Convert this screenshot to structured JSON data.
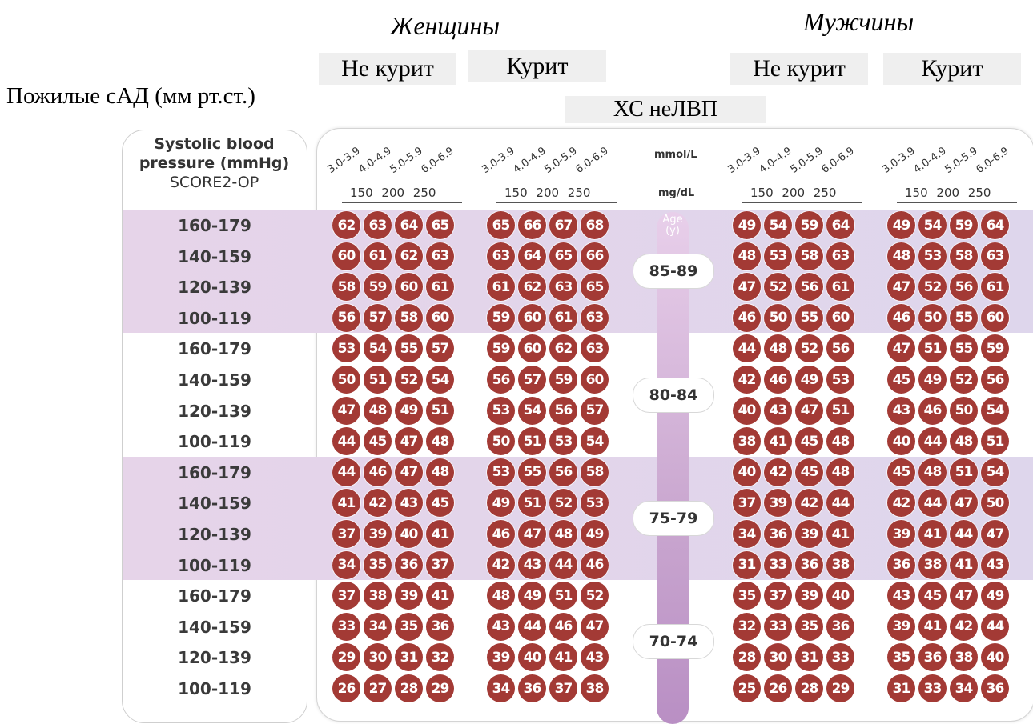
{
  "header": {
    "women": "Женщины",
    "men": "Мужчины",
    "nonsmoker": "Не курит",
    "smoker": "Курит",
    "cholesterol": "ХС неЛВП",
    "sbp_title": "Пожилые сАД (мм рт.ст.)"
  },
  "table": {
    "sbp_head_line1": "Systolic blood",
    "sbp_head_line2": "pressure (mmHg)",
    "sbp_head_line3": "SCORE2-OP",
    "chol_ranges": [
      "3.0-3.9",
      "4.0-4.9",
      "5.0-5.9",
      "6.0-6.9"
    ],
    "mg_ticks": "150 200 250",
    "unit_mmol": "mmol/L",
    "unit_mg": "mg/dL",
    "age_label": "Age (y)",
    "sbp_rows": [
      "160-179",
      "140-159",
      "120-139",
      "100-119"
    ],
    "age_groups": [
      {
        "age": "85-89",
        "shaded": true,
        "rows": [
          [
            [
              62,
              63,
              64,
              65
            ],
            [
              65,
              66,
              67,
              68
            ],
            [
              49,
              54,
              59,
              64
            ],
            [
              49,
              54,
              59,
              64
            ]
          ],
          [
            [
              60,
              61,
              62,
              63
            ],
            [
              63,
              64,
              65,
              66
            ],
            [
              48,
              53,
              58,
              63
            ],
            [
              48,
              53,
              58,
              63
            ]
          ],
          [
            [
              58,
              59,
              60,
              61
            ],
            [
              61,
              62,
              63,
              65
            ],
            [
              47,
              52,
              56,
              61
            ],
            [
              47,
              52,
              56,
              61
            ]
          ],
          [
            [
              56,
              57,
              58,
              60
            ],
            [
              59,
              60,
              61,
              63
            ],
            [
              46,
              50,
              55,
              60
            ],
            [
              46,
              50,
              55,
              60
            ]
          ]
        ]
      },
      {
        "age": "80-84",
        "shaded": false,
        "rows": [
          [
            [
              53,
              54,
              55,
              57
            ],
            [
              59,
              60,
              62,
              63
            ],
            [
              44,
              48,
              52,
              56
            ],
            [
              47,
              51,
              55,
              59
            ]
          ],
          [
            [
              50,
              51,
              52,
              54
            ],
            [
              56,
              57,
              59,
              60
            ],
            [
              42,
              46,
              49,
              53
            ],
            [
              45,
              49,
              52,
              56
            ]
          ],
          [
            [
              47,
              48,
              49,
              51
            ],
            [
              53,
              54,
              56,
              57
            ],
            [
              40,
              43,
              47,
              51
            ],
            [
              43,
              46,
              50,
              54
            ]
          ],
          [
            [
              44,
              45,
              47,
              48
            ],
            [
              50,
              51,
              53,
              54
            ],
            [
              38,
              41,
              45,
              48
            ],
            [
              40,
              44,
              48,
              51
            ]
          ]
        ]
      },
      {
        "age": "75-79",
        "shaded": true,
        "rows": [
          [
            [
              44,
              46,
              47,
              48
            ],
            [
              53,
              55,
              56,
              58
            ],
            [
              40,
              42,
              45,
              48
            ],
            [
              45,
              48,
              51,
              54
            ]
          ],
          [
            [
              41,
              42,
              43,
              45
            ],
            [
              49,
              51,
              52,
              53
            ],
            [
              37,
              39,
              42,
              44
            ],
            [
              42,
              44,
              47,
              50
            ]
          ],
          [
            [
              37,
              39,
              40,
              41
            ],
            [
              46,
              47,
              48,
              49
            ],
            [
              34,
              36,
              39,
              41
            ],
            [
              39,
              41,
              44,
              47
            ]
          ],
          [
            [
              34,
              35,
              36,
              37
            ],
            [
              42,
              43,
              44,
              46
            ],
            [
              31,
              33,
              36,
              38
            ],
            [
              36,
              38,
              41,
              43
            ]
          ]
        ]
      },
      {
        "age": "70-74",
        "shaded": false,
        "rows": [
          [
            [
              37,
              38,
              39,
              41
            ],
            [
              48,
              49,
              51,
              52
            ],
            [
              35,
              37,
              39,
              40
            ],
            [
              43,
              45,
              47,
              49
            ]
          ],
          [
            [
              33,
              34,
              35,
              36
            ],
            [
              43,
              44,
              46,
              47
            ],
            [
              32,
              33,
              35,
              36
            ],
            [
              39,
              41,
              42,
              44
            ]
          ],
          [
            [
              29,
              30,
              31,
              32
            ],
            [
              39,
              40,
              41,
              43
            ],
            [
              28,
              30,
              31,
              33
            ],
            [
              35,
              36,
              38,
              40
            ]
          ],
          [
            [
              26,
              27,
              28,
              29
            ],
            [
              34,
              36,
              37,
              38
            ],
            [
              25,
              26,
              28,
              29
            ],
            [
              31,
              33,
              34,
              36
            ]
          ]
        ]
      }
    ]
  }
}
